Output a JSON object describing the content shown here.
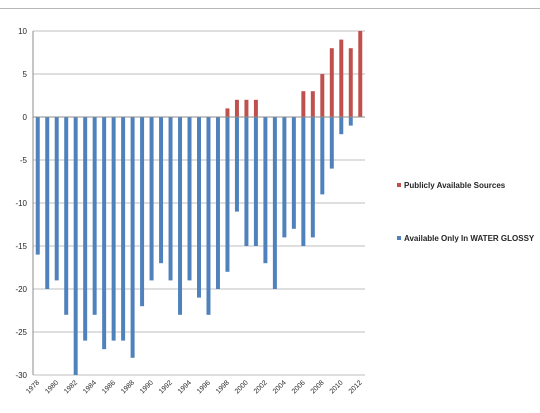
{
  "chart_data": {
    "type": "bar",
    "title": "",
    "xlabel": "",
    "ylabel": "",
    "ylim": [
      -30,
      10
    ],
    "yticks": [
      10,
      5,
      0,
      -5,
      -10,
      -15,
      -20,
      -25,
      -30
    ],
    "grid": true,
    "legend_position": "right",
    "categories": [
      "1978",
      "1979",
      "1980",
      "1981",
      "1982",
      "1983",
      "1984",
      "1985",
      "1986",
      "1987",
      "1988",
      "1989",
      "1990",
      "1991",
      "1992",
      "1993",
      "1994",
      "1995",
      "1996",
      "1997",
      "1998",
      "1999",
      "2000",
      "2001",
      "2002",
      "2003",
      "2004",
      "2005",
      "2006",
      "2007",
      "2008",
      "2009",
      "2010",
      "2011",
      "2012"
    ],
    "tick_labels": [
      "1978",
      "1980",
      "1982",
      "1984",
      "1986",
      "1988",
      "1990",
      "1992",
      "1994",
      "1996",
      "1998",
      "2000",
      "2002",
      "2004",
      "2006",
      "2008",
      "2010",
      "2012"
    ],
    "series": [
      {
        "name": "Publicly Available Sources",
        "color": "#c0504d",
        "values": [
          0,
          0,
          0,
          0,
          0,
          0,
          0,
          0,
          0,
          0,
          0,
          0,
          0,
          0,
          0,
          0,
          0,
          0,
          0,
          0,
          1,
          2,
          2,
          2,
          0,
          0,
          0,
          0,
          3,
          3,
          5,
          8,
          9,
          8,
          10
        ]
      },
      {
        "name": "Available Only In WATER GLOSSY",
        "color": "#4f81bd",
        "values": [
          -16,
          -20,
          -19,
          -23,
          -30,
          -26,
          -23,
          -27,
          -26,
          -26,
          -28,
          -22,
          -19,
          -17,
          -19,
          -23,
          -19,
          -21,
          -23,
          -20,
          -18,
          -11,
          -15,
          -15,
          -17,
          -20,
          -14,
          -13,
          -15,
          -14,
          -9,
          -6,
          -2,
          -1,
          0
        ]
      }
    ]
  }
}
